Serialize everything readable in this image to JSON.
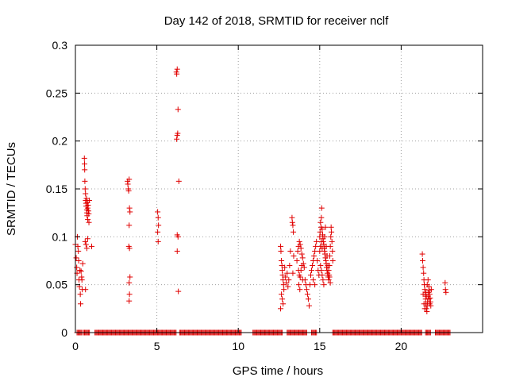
{
  "chart_data": {
    "type": "scatter",
    "title": "Day 142 of 2018, SRMTID for receiver nclf",
    "xlabel": "GPS time / hours",
    "ylabel": "SRMTID / TECUs",
    "xlim": [
      0,
      25
    ],
    "ylim": [
      0,
      0.3
    ],
    "xticks": [
      0,
      5,
      10,
      15,
      20
    ],
    "yticks": [
      0,
      0.05,
      0.1,
      0.15,
      0.2,
      0.25,
      0.3
    ],
    "ytick_labels": [
      "0",
      "0.05",
      "0.1",
      "0.15",
      "0.2",
      "0.25",
      "0.3"
    ],
    "grid": true,
    "marker": "+",
    "color": "#e00000",
    "series": [
      {
        "points": [
          [
            0.0,
            0.092
          ],
          [
            0.05,
            0.078
          ],
          [
            0.08,
            0.068
          ],
          [
            0.1,
            0.062
          ],
          [
            0.12,
            0.1
          ],
          [
            0.15,
            0.09
          ],
          [
            0.18,
            0.085
          ],
          [
            0.2,
            0.075
          ],
          [
            0.22,
            0.055
          ],
          [
            0.25,
            0.048
          ],
          [
            0.28,
            0.065
          ],
          [
            0.3,
            0.04
          ],
          [
            0.32,
            0.03
          ],
          [
            0.35,
            0.064
          ],
          [
            0.38,
            0.058
          ],
          [
            0.4,
            0.055
          ],
          [
            0.42,
            0.045
          ],
          [
            0.45,
            0.072
          ],
          [
            0.55,
            0.182
          ],
          [
            0.56,
            0.176
          ],
          [
            0.57,
            0.17
          ],
          [
            0.58,
            0.158
          ],
          [
            0.6,
            0.15
          ],
          [
            0.62,
            0.145
          ],
          [
            0.63,
            0.138
          ],
          [
            0.65,
            0.135
          ],
          [
            0.66,
            0.132
          ],
          [
            0.68,
            0.14
          ],
          [
            0.7,
            0.128
          ],
          [
            0.71,
            0.125
          ],
          [
            0.72,
            0.122
          ],
          [
            0.74,
            0.136
          ],
          [
            0.75,
            0.13
          ],
          [
            0.76,
            0.118
          ],
          [
            0.78,
            0.133
          ],
          [
            0.8,
            0.127
          ],
          [
            0.82,
            0.124
          ],
          [
            0.83,
            0.115
          ],
          [
            0.85,
            0.138
          ],
          [
            0.6,
            0.095
          ],
          [
            0.65,
            0.092
          ],
          [
            0.7,
            0.088
          ],
          [
            0.75,
            0.098
          ],
          [
            0.62,
            0.045
          ],
          [
            1.0,
            0.09
          ],
          [
            3.2,
            0.158
          ],
          [
            3.22,
            0.155
          ],
          [
            3.25,
            0.15
          ],
          [
            3.27,
            0.148
          ],
          [
            3.3,
            0.16
          ],
          [
            3.32,
            0.13
          ],
          [
            3.35,
            0.126
          ],
          [
            3.3,
            0.112
          ],
          [
            3.28,
            0.09
          ],
          [
            3.32,
            0.088
          ],
          [
            3.35,
            0.058
          ],
          [
            3.3,
            0.052
          ],
          [
            3.32,
            0.04
          ],
          [
            3.3,
            0.033
          ],
          [
            5.05,
            0.126
          ],
          [
            5.08,
            0.12
          ],
          [
            5.1,
            0.112
          ],
          [
            5.05,
            0.105
          ],
          [
            5.08,
            0.095
          ],
          [
            6.2,
            0.272
          ],
          [
            6.25,
            0.275
          ],
          [
            6.22,
            0.27
          ],
          [
            6.3,
            0.233
          ],
          [
            6.28,
            0.208
          ],
          [
            6.25,
            0.206
          ],
          [
            6.22,
            0.202
          ],
          [
            6.35,
            0.158
          ],
          [
            6.25,
            0.102
          ],
          [
            6.3,
            0.1
          ],
          [
            6.25,
            0.085
          ],
          [
            6.32,
            0.043
          ],
          [
            12.6,
            0.09
          ],
          [
            12.62,
            0.085
          ],
          [
            12.65,
            0.075
          ],
          [
            12.68,
            0.07
          ],
          [
            12.7,
            0.065
          ],
          [
            12.72,
            0.06
          ],
          [
            12.75,
            0.055
          ],
          [
            12.78,
            0.05
          ],
          [
            12.8,
            0.045
          ],
          [
            12.65,
            0.04
          ],
          [
            12.7,
            0.035
          ],
          [
            12.75,
            0.03
          ],
          [
            12.6,
            0.025
          ],
          [
            12.85,
            0.068
          ],
          [
            12.9,
            0.058
          ],
          [
            12.95,
            0.052
          ],
          [
            13.0,
            0.062
          ],
          [
            13.05,
            0.048
          ],
          [
            13.1,
            0.055
          ],
          [
            13.15,
            0.07
          ],
          [
            13.2,
            0.085
          ],
          [
            13.3,
            0.12
          ],
          [
            13.32,
            0.115
          ],
          [
            13.35,
            0.112
          ],
          [
            13.38,
            0.105
          ],
          [
            13.4,
            0.08
          ],
          [
            13.35,
            0.062
          ],
          [
            13.6,
            0.075
          ],
          [
            13.65,
            0.085
          ],
          [
            13.7,
            0.09
          ],
          [
            13.75,
            0.095
          ],
          [
            13.8,
            0.092
          ],
          [
            13.85,
            0.088
          ],
          [
            13.9,
            0.082
          ],
          [
            13.95,
            0.078
          ],
          [
            14.0,
            0.072
          ],
          [
            14.05,
            0.068
          ],
          [
            13.7,
            0.065
          ],
          [
            13.75,
            0.06
          ],
          [
            13.8,
            0.058
          ],
          [
            13.85,
            0.065
          ],
          [
            13.9,
            0.07
          ],
          [
            13.95,
            0.055
          ],
          [
            13.72,
            0.05
          ],
          [
            13.78,
            0.045
          ],
          [
            14.1,
            0.055
          ],
          [
            14.15,
            0.05
          ],
          [
            14.2,
            0.045
          ],
          [
            14.25,
            0.04
          ],
          [
            14.3,
            0.035
          ],
          [
            14.35,
            0.028
          ],
          [
            14.4,
            0.05
          ],
          [
            14.45,
            0.06
          ],
          [
            14.5,
            0.065
          ],
          [
            14.55,
            0.07
          ],
          [
            14.6,
            0.075
          ],
          [
            14.65,
            0.08
          ],
          [
            14.7,
            0.085
          ],
          [
            14.75,
            0.09
          ],
          [
            14.8,
            0.095
          ],
          [
            14.85,
            0.075
          ],
          [
            14.9,
            0.065
          ],
          [
            14.95,
            0.06
          ],
          [
            14.6,
            0.055
          ],
          [
            14.7,
            0.05
          ],
          [
            15.0,
            0.1
          ],
          [
            15.02,
            0.105
          ],
          [
            15.05,
            0.115
          ],
          [
            15.08,
            0.11
          ],
          [
            15.1,
            0.12
          ],
          [
            15.12,
            0.13
          ],
          [
            15.15,
            0.108
          ],
          [
            15.18,
            0.102
          ],
          [
            15.2,
            0.098
          ],
          [
            15.22,
            0.095
          ],
          [
            15.25,
            0.092
          ],
          [
            15.28,
            0.088
          ],
          [
            15.3,
            0.085
          ],
          [
            15.32,
            0.082
          ],
          [
            15.35,
            0.078
          ],
          [
            15.38,
            0.075
          ],
          [
            15.4,
            0.072
          ],
          [
            15.42,
            0.068
          ],
          [
            15.45,
            0.065
          ],
          [
            15.48,
            0.062
          ],
          [
            15.5,
            0.06
          ],
          [
            15.52,
            0.058
          ],
          [
            15.55,
            0.055
          ],
          [
            15.58,
            0.06
          ],
          [
            15.6,
            0.07
          ],
          [
            15.62,
            0.08
          ],
          [
            15.65,
            0.09
          ],
          [
            15.68,
            0.1
          ],
          [
            15.7,
            0.11
          ],
          [
            15.72,
            0.105
          ],
          [
            15.75,
            0.095
          ],
          [
            15.78,
            0.085
          ],
          [
            15.8,
            0.075
          ],
          [
            15.05,
            0.07
          ],
          [
            15.1,
            0.065
          ],
          [
            15.15,
            0.06
          ],
          [
            15.2,
            0.055
          ],
          [
            15.25,
            0.05
          ],
          [
            15.3,
            0.1
          ],
          [
            15.35,
            0.11
          ],
          [
            15.4,
            0.09
          ],
          [
            15.45,
            0.08
          ],
          [
            15.5,
            0.07
          ],
          [
            15.55,
            0.065
          ],
          [
            15.6,
            0.058
          ],
          [
            15.65,
            0.052
          ],
          [
            15.0,
            0.085
          ],
          [
            15.05,
            0.09
          ],
          [
            15.1,
            0.095
          ],
          [
            15.15,
            0.088
          ],
          [
            21.3,
            0.082
          ],
          [
            21.32,
            0.075
          ],
          [
            21.35,
            0.068
          ],
          [
            21.38,
            0.062
          ],
          [
            21.4,
            0.055
          ],
          [
            21.42,
            0.05
          ],
          [
            21.45,
            0.045
          ],
          [
            21.48,
            0.04
          ],
          [
            21.5,
            0.035
          ],
          [
            21.52,
            0.03
          ],
          [
            21.55,
            0.025
          ],
          [
            21.58,
            0.022
          ],
          [
            21.6,
            0.028
          ],
          [
            21.62,
            0.032
          ],
          [
            21.65,
            0.038
          ],
          [
            21.68,
            0.042
          ],
          [
            21.7,
            0.048
          ],
          [
            21.72,
            0.044
          ],
          [
            21.75,
            0.04
          ],
          [
            21.78,
            0.036
          ],
          [
            21.8,
            0.032
          ],
          [
            21.82,
            0.028
          ],
          [
            21.85,
            0.045
          ],
          [
            21.4,
            0.03
          ],
          [
            21.45,
            0.025
          ],
          [
            21.5,
            0.042
          ],
          [
            21.55,
            0.038
          ],
          [
            21.6,
            0.05
          ],
          [
            21.65,
            0.055
          ],
          [
            21.7,
            0.035
          ],
          [
            21.75,
            0.03
          ],
          [
            21.35,
            0.04
          ],
          [
            22.7,
            0.052
          ],
          [
            22.72,
            0.045
          ],
          [
            22.75,
            0.042
          ]
        ],
        "zero_bands": [
          [
            0.1,
            0.4
          ],
          [
            0.5,
            0.9
          ],
          [
            1.2,
            6.2
          ],
          [
            6.4,
            10.2
          ],
          [
            10.9,
            12.7
          ],
          [
            13.0,
            14.2
          ],
          [
            14.5,
            14.8
          ],
          [
            15.8,
            21.3
          ],
          [
            21.5,
            21.8
          ],
          [
            22.1,
            23.0
          ]
        ]
      }
    ]
  }
}
